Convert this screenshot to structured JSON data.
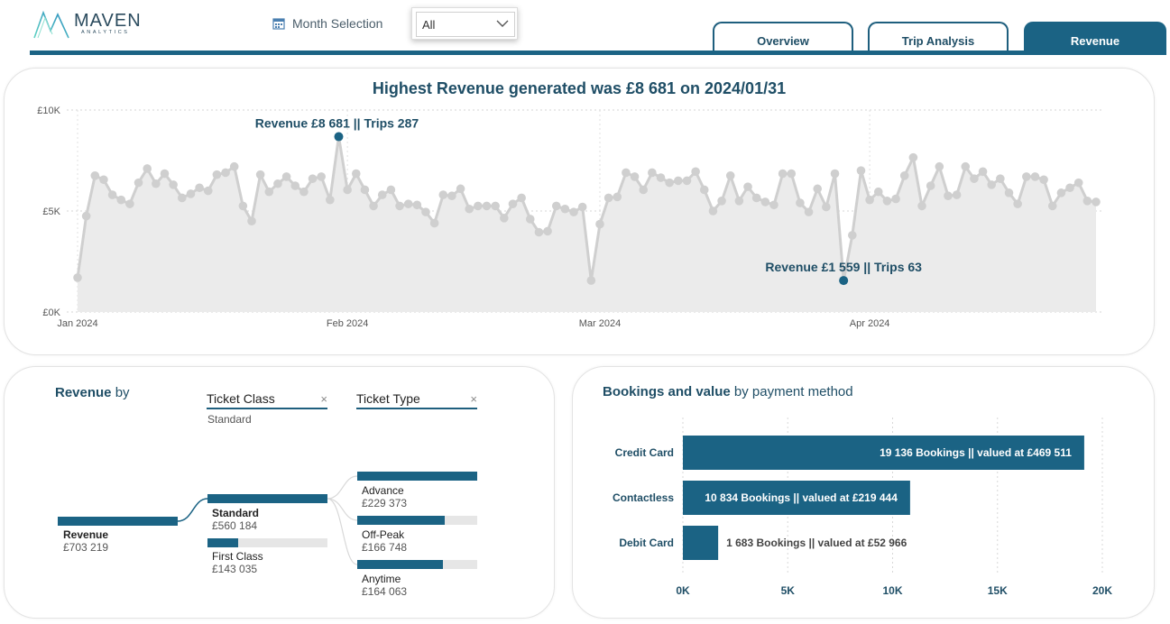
{
  "header": {
    "logo": {
      "name": "MAVEN",
      "sub": "ANALYTICS"
    },
    "month_selection_label": "Month Selection",
    "month_selection_value": "All",
    "tabs": [
      {
        "label": "Overview",
        "active": false
      },
      {
        "label": "Trip Analysis",
        "active": false
      },
      {
        "label": "Revenue",
        "active": true
      }
    ]
  },
  "colors": {
    "accent": "#1b6384",
    "point": "#cfcfcf",
    "area": "#ebebeb"
  },
  "line_chart_data": {
    "type": "area",
    "title": "Highest Revenue generated was £8 681 on 2024/01/31",
    "y_ticks": [
      "£0K",
      "£5K",
      "£10K"
    ],
    "ylim": [
      0,
      10000
    ],
    "x_ticks": [
      "Jan 2024",
      "Feb 2024",
      "Mar 2024",
      "Apr 2024"
    ],
    "x_start": "2024-01-01",
    "x_end": "2024-04-30",
    "values": [
      1700,
      4750,
      6750,
      6550,
      5800,
      5550,
      5350,
      6400,
      7100,
      6350,
      6850,
      6300,
      5650,
      5850,
      6150,
      6000,
      6800,
      6900,
      7200,
      5250,
      4500,
      6800,
      5950,
      6350,
      6700,
      6250,
      5950,
      6600,
      6700,
      5550,
      8681,
      6050,
      6850,
      6050,
      5250,
      5800,
      6050,
      5250,
      5350,
      5300,
      4950,
      4400,
      5800,
      5750,
      6100,
      5100,
      5250,
      5250,
      5250,
      4650,
      5350,
      5650,
      4600,
      3950,
      4000,
      5250,
      5100,
      4950,
      5200,
      1559,
      4350,
      5650,
      5700,
      6900,
      6700,
      6050,
      6900,
      6650,
      6400,
      6500,
      6500,
      6950,
      6050,
      5000,
      5500,
      6750,
      5500,
      6200,
      5650,
      5450,
      5300,
      6850,
      6850,
      5400,
      4950,
      6100,
      5200,
      6850,
      1559,
      3800,
      7000,
      5550,
      5950,
      5500,
      5600,
      6750,
      7650,
      5250,
      6250,
      7200,
      5750,
      5800,
      7200,
      6600,
      6950,
      6300,
      6600,
      5900,
      5350,
      6700,
      6700,
      6550,
      5250,
      5900,
      6150,
      6400,
      5500,
      5450
    ],
    "annotations": [
      {
        "label": "Revenue £8 681 || Trips 287"
      },
      {
        "label": "Revenue £1 559 || Trips 63"
      }
    ]
  },
  "decomposition": {
    "title_bold": "Revenue",
    "title_rest": "by",
    "filters": [
      {
        "label": "Ticket Class",
        "close": "×",
        "selected": "Standard"
      },
      {
        "label": "Ticket Type",
        "close": "×"
      }
    ],
    "root": {
      "name": "Revenue",
      "value": "£703 219",
      "fraction": 1.0
    },
    "level1": [
      {
        "name": "Standard",
        "value": "£560 184",
        "fraction": 1.0,
        "selected": true
      },
      {
        "name": "First Class",
        "value": "£143 035",
        "fraction": 0.255
      }
    ],
    "level2": [
      {
        "name": "Advance",
        "value": "£229 373",
        "fraction": 1.0
      },
      {
        "name": "Off-Peak",
        "value": "£166 748",
        "fraction": 0.727
      },
      {
        "name": "Anytime",
        "value": "£164 063",
        "fraction": 0.715
      }
    ]
  },
  "chart_data": {
    "type": "bar",
    "title": "Bookings and value by payment method",
    "categories": [
      "Credit Card",
      "Contactless",
      "Debit Card"
    ],
    "values": [
      19136,
      10834,
      1683
    ],
    "data_labels": [
      "19 136 Bookings || valued at £469 511",
      "10 834 Bookings || valued at £219 444",
      "1 683 Bookings || valued at £52 966"
    ],
    "x_ticks": [
      "0K",
      "5K",
      "10K",
      "15K",
      "20K"
    ],
    "xlim": [
      0,
      20000
    ]
  },
  "bookings_title": {
    "bold": "Bookings and value",
    "rest": "by payment method"
  }
}
